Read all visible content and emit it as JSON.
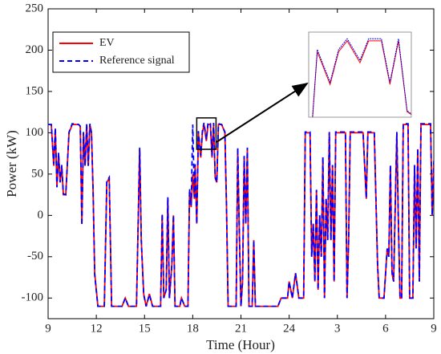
{
  "chart_data": {
    "type": "line",
    "x_label": "Time (Hour)",
    "y_label": "Power (kW)",
    "x": [
      9.0,
      9.2,
      9.35,
      9.45,
      9.55,
      9.65,
      9.75,
      9.85,
      9.95,
      10.1,
      10.3,
      10.5,
      10.9,
      11.0,
      11.1,
      11.2,
      11.3,
      11.4,
      11.5,
      11.6,
      11.7,
      11.8,
      11.9,
      12.1,
      12.5,
      12.65,
      12.8,
      12.95,
      13.6,
      13.8,
      14.0,
      14.5,
      14.7,
      14.8,
      14.95,
      15.1,
      15.3,
      15.5,
      16.0,
      16.1,
      16.2,
      16.35,
      16.45,
      16.55,
      16.7,
      16.8,
      16.9,
      17.2,
      17.3,
      17.5,
      17.7,
      17.8,
      17.9,
      18.0,
      18.1,
      18.15,
      18.25,
      18.35,
      18.5,
      18.6,
      18.7,
      18.85,
      18.95,
      19.1,
      19.2,
      19.3,
      19.4,
      19.5,
      19.6,
      19.8,
      20.0,
      20.1,
      20.2,
      20.7,
      20.8,
      20.9,
      21.0,
      21.1,
      21.2,
      21.3,
      21.4,
      21.5,
      21.7,
      21.8,
      21.9,
      22.5,
      23.0,
      23.3,
      23.5,
      23.9,
      24.0,
      24.2,
      24.4,
      24.6,
      24.9,
      25.0,
      25.3,
      25.4,
      25.5,
      25.6,
      25.7,
      25.8,
      25.9,
      26.0,
      26.1,
      26.2,
      26.3,
      26.4,
      26.5,
      26.6,
      26.7,
      26.8,
      26.9,
      27.0,
      27.5,
      27.6,
      27.7,
      27.8,
      28.0,
      28.6,
      28.8,
      28.9,
      29.3,
      29.5,
      29.6,
      29.9,
      30.1,
      30.2,
      30.3,
      30.4,
      30.5,
      30.6,
      30.7,
      30.8,
      30.9,
      31.0,
      31.1,
      31.4,
      31.5,
      31.7,
      31.8,
      31.9,
      32.0,
      32.1,
      32.2,
      32.8,
      32.9,
      33.0
    ],
    "series": [
      {
        "name": "EV",
        "color": "#ff0000",
        "dash": false,
        "values": [
          110,
          110,
          60,
          105,
          35,
          75,
          40,
          60,
          25,
          25,
          100,
          110,
          110,
          108,
          -10,
          100,
          60,
          110,
          60,
          110,
          100,
          30,
          -70,
          -110,
          -110,
          40,
          45,
          -110,
          -110,
          -100,
          -110,
          -110,
          80,
          -30,
          -95,
          -110,
          -95,
          -110,
          -110,
          0,
          -100,
          -90,
          20,
          -100,
          -60,
          0,
          -110,
          -110,
          -100,
          -110,
          -110,
          30,
          10,
          50,
          20,
          60,
          -10,
          100,
          70,
          100,
          110,
          90,
          110,
          110,
          70,
          110,
          45,
          40,
          110,
          110,
          100,
          10,
          -110,
          -110,
          80,
          -20,
          -110,
          -80,
          70,
          -10,
          80,
          -110,
          -110,
          -30,
          -110,
          -110,
          -110,
          -110,
          -100,
          -100,
          -80,
          -100,
          -70,
          -100,
          -100,
          100,
          100,
          -50,
          -10,
          -80,
          30,
          -90,
          0,
          -50,
          70,
          -100,
          20,
          -30,
          100,
          -30,
          60,
          -80,
          100,
          100,
          100,
          -100,
          -30,
          100,
          100,
          100,
          20,
          100,
          100,
          -60,
          -100,
          -100,
          -40,
          -50,
          60,
          -70,
          -80,
          10,
          100,
          -10,
          -100,
          -100,
          110,
          110,
          -100,
          -100,
          60,
          -40,
          80,
          -80,
          110,
          110,
          0,
          65
        ]
      },
      {
        "name": "Reference signal",
        "color": "#0000ff",
        "dash": true,
        "values": [
          110,
          110,
          62,
          106,
          34,
          76,
          40,
          61,
          26,
          25,
          101,
          111,
          110,
          108,
          -12,
          101,
          60,
          111,
          60,
          111,
          100,
          30,
          -72,
          -110,
          -110,
          41,
          46,
          -110,
          -110,
          -100,
          -110,
          -110,
          82,
          -30,
          -96,
          -110,
          -96,
          -110,
          -110,
          2,
          -100,
          -90,
          22,
          -100,
          -60,
          0,
          -110,
          -110,
          -100,
          -110,
          -110,
          32,
          12,
          110,
          22,
          62,
          -10,
          102,
          72,
          102,
          112,
          92,
          112,
          112,
          72,
          112,
          46,
          40,
          111,
          110,
          101,
          10,
          -110,
          -110,
          82,
          -20,
          -110,
          -80,
          72,
          -10,
          82,
          -110,
          -110,
          -30,
          -110,
          -110,
          -110,
          -110,
          -100,
          -100,
          -80,
          -100,
          -70,
          -100,
          -100,
          101,
          101,
          -50,
          -10,
          -80,
          31,
          -90,
          0,
          -50,
          71,
          -100,
          21,
          -30,
          101,
          -30,
          61,
          -80,
          101,
          101,
          101,
          -100,
          -30,
          101,
          101,
          101,
          21,
          101,
          101,
          -60,
          -100,
          -100,
          -40,
          -50,
          61,
          -70,
          -80,
          11,
          101,
          -10,
          -100,
          -100,
          111,
          111,
          -100,
          -100,
          61,
          -40,
          81,
          -80,
          111,
          111,
          0,
          66
        ]
      }
    ],
    "xlim": [
      9,
      33
    ],
    "xticks": [
      9,
      12,
      15,
      18,
      21,
      24,
      {
        "value": 27,
        "label": "3"
      },
      {
        "value": 30,
        "label": "6"
      },
      {
        "value": 33,
        "label": "9"
      }
    ],
    "ylim": [
      -125,
      250
    ],
    "yticks": [
      -100,
      -50,
      0,
      50,
      100,
      150,
      200,
      250
    ],
    "legend": "upper left"
  }
}
